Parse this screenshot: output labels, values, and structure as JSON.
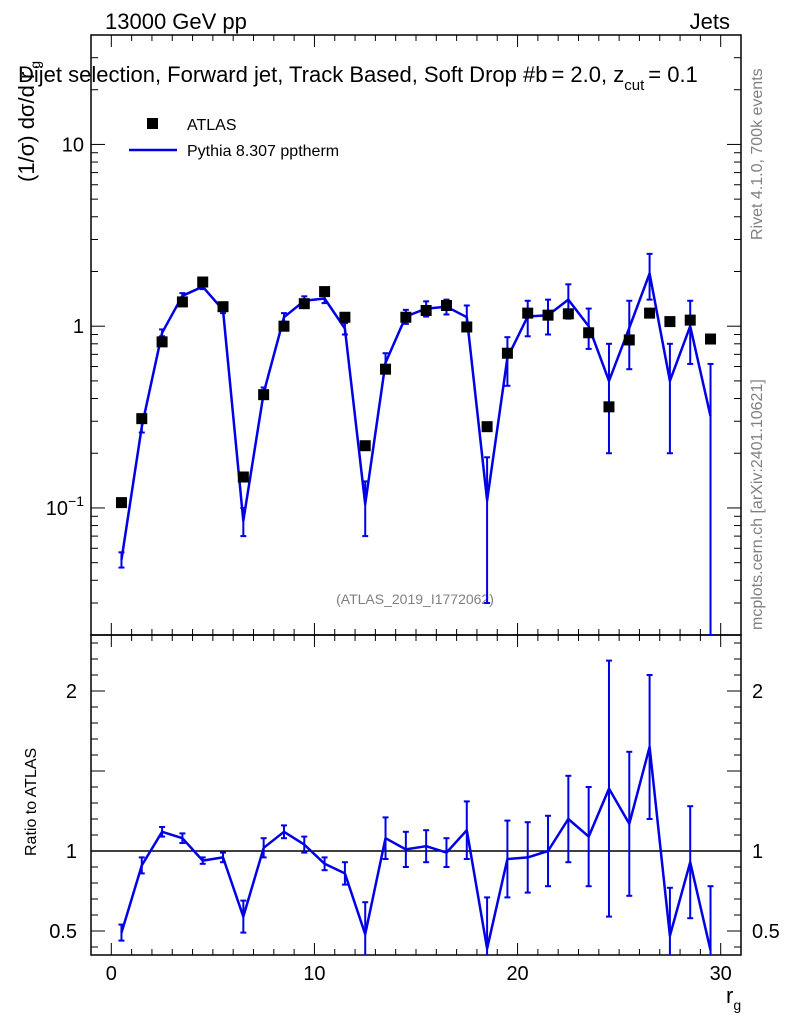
{
  "header": {
    "left": "13000 GeV pp",
    "right": "Jets",
    "subtitle": "Dijet selection, Forward jet, Track Based, Soft Drop #b",
    "subtitle_suffix": "= 2.0, z",
    "subtitle_cut": "cut",
    "subtitle_end": "= 0.1"
  },
  "side_labels": {
    "rivet": "Rivet 4.1.0,  700k events",
    "mcplots": "mcplots.cern.ch [arXiv:2401.10621]"
  },
  "watermark": "(ATLAS_2019_I1772062)",
  "colors": {
    "mc": "#0000e6",
    "data": "#000000",
    "grey": "#808080"
  },
  "chart_data": {
    "type": "line",
    "title": "Dijet selection, Forward jet, Track Based, Soft Drop #b = 2.0, z_cut = 0.1",
    "xlabel": "r",
    "xlabel_sub": "g",
    "ylabel": "(1/σ) dσ/d r",
    "ylabel_sub": "g",
    "ratio_ylabel": "Ratio to ATLAS",
    "xlim": [
      -1,
      31
    ],
    "ylim": [
      0.02,
      40
    ],
    "yscale": "log",
    "ratio_ylim": [
      0.35,
      2.35
    ],
    "xticks": [
      0,
      10,
      20,
      30
    ],
    "yticks_main": [
      {
        "v": 0.1,
        "base": "10",
        "exp": "−1"
      },
      {
        "v": 1,
        "base": "1",
        "exp": ""
      },
      {
        "v": 10,
        "base": "10",
        "exp": ""
      }
    ],
    "yticks_ratio": [
      0.5,
      1,
      2
    ],
    "legend": {
      "position": "top-left",
      "data_label": "ATLAS",
      "mc_label": "Pythia 8.307 pptherm"
    },
    "x": [
      0.5,
      1.5,
      2.5,
      3.5,
      4.5,
      5.5,
      6.5,
      7.5,
      8.5,
      9.5,
      10.5,
      11.5,
      12.5,
      13.5,
      14.5,
      15.5,
      16.5,
      17.5,
      18.5,
      19.5,
      20.5,
      21.5,
      22.5,
      23.5,
      24.5,
      25.5,
      26.5,
      27.5,
      28.5,
      29.5
    ],
    "series": [
      {
        "name": "ATLAS",
        "values": [
          0.107,
          0.31,
          0.82,
          1.36,
          1.75,
          1.28,
          0.148,
          0.42,
          1.0,
          1.33,
          1.55,
          1.12,
          0.22,
          0.58,
          1.12,
          1.22,
          1.3,
          0.99,
          0.28,
          0.71,
          1.18,
          1.15,
          1.17,
          0.92,
          0.36,
          0.84,
          1.18,
          1.06,
          1.08,
          0.85
        ]
      },
      {
        "name": "Pythia 8.307 pptherm",
        "values": [
          0.052,
          0.28,
          0.92,
          1.47,
          1.65,
          1.23,
          0.085,
          0.43,
          1.12,
          1.38,
          1.42,
          0.97,
          0.105,
          0.63,
          1.13,
          1.25,
          1.28,
          1.12,
          0.11,
          0.67,
          1.13,
          1.15,
          1.4,
          1.0,
          0.5,
          0.98,
          1.95,
          0.5,
          1.0,
          0.32
        ],
        "errors": [
          0.005,
          0.02,
          0.04,
          0.05,
          0.05,
          0.05,
          0.015,
          0.03,
          0.06,
          0.08,
          0.08,
          0.07,
          0.035,
          0.08,
          0.1,
          0.12,
          0.12,
          0.18,
          0.08,
          0.2,
          0.25,
          0.25,
          0.3,
          0.25,
          0.3,
          0.4,
          0.55,
          0.3,
          0.38,
          0.3
        ]
      }
    ],
    "ratio": {
      "name": "Pythia / ATLAS",
      "values": [
        0.49,
        0.91,
        1.12,
        1.08,
        0.94,
        0.96,
        0.59,
        1.02,
        1.12,
        1.04,
        0.92,
        0.86,
        0.48,
        1.08,
        1.01,
        1.03,
        0.99,
        1.13,
        0.39,
        0.95,
        0.96,
        1.0,
        1.2,
        1.09,
        1.39,
        1.17,
        1.65,
        0.47,
        0.93,
        0.38
      ],
      "errors": [
        0.05,
        0.05,
        0.03,
        0.03,
        0.02,
        0.03,
        0.1,
        0.06,
        0.04,
        0.05,
        0.04,
        0.07,
        0.2,
        0.13,
        0.11,
        0.1,
        0.09,
        0.18,
        0.32,
        0.24,
        0.22,
        0.22,
        0.27,
        0.31,
        0.8,
        0.45,
        0.45,
        0.3,
        0.35,
        0.4
      ]
    }
  }
}
